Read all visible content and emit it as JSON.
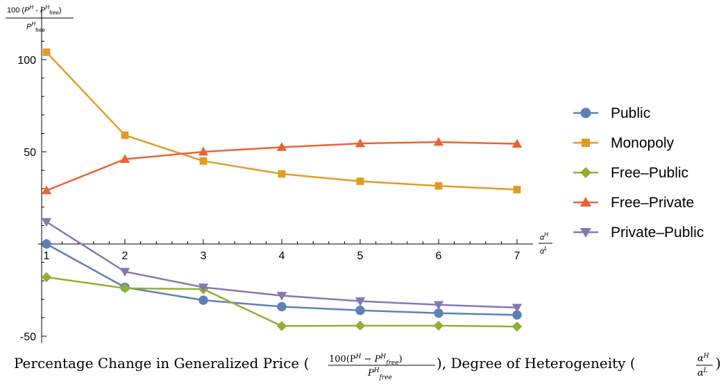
{
  "chart_data": {
    "type": "line",
    "x": [
      1,
      2,
      3,
      4,
      5,
      6,
      7
    ],
    "xlim": [
      1,
      7
    ],
    "ylim": [
      -50,
      110
    ],
    "x_ticks": [
      "1",
      "2",
      "3",
      "4",
      "5",
      "6",
      "7"
    ],
    "y_ticks": [
      "100",
      "50",
      "-50"
    ],
    "y_tick_values": [
      100,
      50,
      -50
    ],
    "ylabel": {
      "numerator_prefix": "100 (",
      "numerator_p1": "P",
      "numerator_sup1": "H",
      "numerator_mid": " - ",
      "numerator_p2": "P",
      "numerator_sup2": "H",
      "numerator_sub2": "free",
      "numerator_suffix": ")",
      "denominator_p": "P",
      "denominator_sup": "H",
      "denominator_sub": "free"
    },
    "xlabel": {
      "numerator": "α",
      "numerator_sup": "H",
      "denominator": "α",
      "denominator_sup": "L"
    },
    "caption": {
      "part1": "Percentage Change in Generalized Price (",
      "frac_num": "100(P",
      "frac_num_sup": "H",
      "frac_num_mid": " − P",
      "frac_num_sup2": "H",
      "frac_num_sub2": "free",
      "frac_num_end": ")",
      "frac_den": "P",
      "frac_den_sup": "H",
      "frac_den_sub": "free",
      "part2": "), Degree of Heterogeneity (",
      "frac2_num": "α",
      "frac2_num_sup": "H",
      "frac2_den": "α",
      "frac2_den_sup": "L",
      "part3": ")"
    },
    "legend_position": "right",
    "series": [
      {
        "name": "Public",
        "color": "#5E81B5",
        "marker": "circle",
        "values": [
          0,
          -23.5,
          -30.5,
          -34,
          -36,
          -37.5,
          -38.5
        ]
      },
      {
        "name": "Monopoly",
        "color": "#E19C24",
        "marker": "square",
        "values": [
          104,
          59,
          45,
          38,
          34,
          31.5,
          29.5
        ]
      },
      {
        "name": "Free–Public",
        "color": "#8FB032",
        "marker": "diamond",
        "values": [
          -18,
          -24,
          -24.5,
          -44.5,
          -44.3,
          -44.3,
          -44.8
        ]
      },
      {
        "name": "Free–Private",
        "color": "#EB6235",
        "marker": "triangle-up",
        "values": [
          29,
          46,
          50,
          52.5,
          54.5,
          55.3,
          54.3
        ]
      },
      {
        "name": "Private–Public",
        "color": "#8778B3",
        "marker": "triangle-down",
        "values": [
          12,
          -15,
          -23.5,
          -28,
          -31,
          -33,
          -34.5
        ]
      }
    ]
  }
}
